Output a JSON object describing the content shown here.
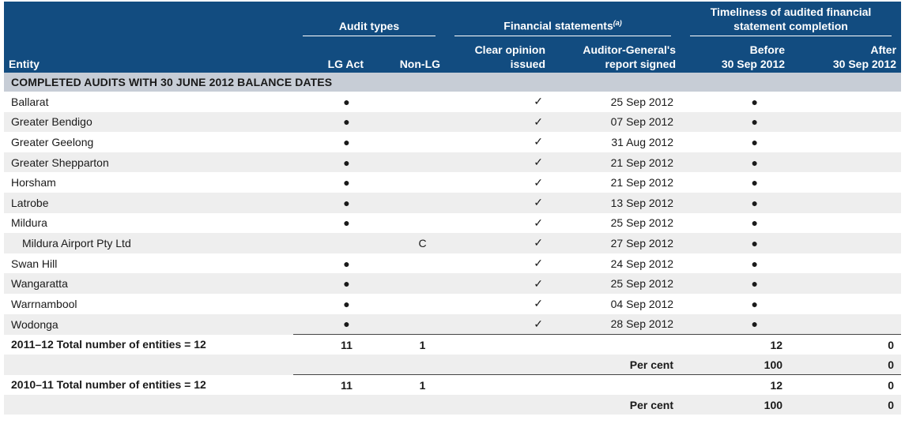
{
  "header": {
    "entity": "Entity",
    "audit_types": "Audit types",
    "lg_act": "LG Act",
    "non_lg": "Non-LG",
    "financial_statements": "Financial statements",
    "fs_note": "(a)",
    "clear_opinion_1": "Clear opinion",
    "clear_opinion_2": "issued",
    "ag_report_1": "Auditor-General's",
    "ag_report_2": "report signed",
    "timeliness_1": "Timeliness of audited financial",
    "timeliness_2": "statement completion",
    "before_1": "Before",
    "before_2": "30 Sep 2012",
    "after_1": "After",
    "after_2": "30 Sep 2012"
  },
  "section_title": "COMPLETED AUDITS WITH 30 JUNE 2012 BALANCE DATES",
  "symbols": {
    "dot": "●",
    "tick": "✓"
  },
  "rows": [
    {
      "entity": "Ballarat",
      "lg": "●",
      "nonlg": "",
      "clear": "✓",
      "ag": "25 Sep 2012",
      "before": "●",
      "after": ""
    },
    {
      "entity": "Greater Bendigo",
      "lg": "●",
      "nonlg": "",
      "clear": "✓",
      "ag": "07 Sep 2012",
      "before": "●",
      "after": ""
    },
    {
      "entity": "Greater Geelong",
      "lg": "●",
      "nonlg": "",
      "clear": "✓",
      "ag": "31 Aug 2012",
      "before": "●",
      "after": ""
    },
    {
      "entity": "Greater Shepparton",
      "lg": "●",
      "nonlg": "",
      "clear": "✓",
      "ag": "21 Sep 2012",
      "before": "●",
      "after": ""
    },
    {
      "entity": "Horsham",
      "lg": "●",
      "nonlg": "",
      "clear": "✓",
      "ag": "21 Sep 2012",
      "before": "●",
      "after": ""
    },
    {
      "entity": "Latrobe",
      "lg": "●",
      "nonlg": "",
      "clear": "✓",
      "ag": "13 Sep 2012",
      "before": "●",
      "after": ""
    },
    {
      "entity": "Mildura",
      "lg": "●",
      "nonlg": "",
      "clear": "✓",
      "ag": "25 Sep 2012",
      "before": "●",
      "after": ""
    },
    {
      "entity": "Mildura Airport Pty Ltd",
      "lg": "",
      "nonlg": "C",
      "clear": "✓",
      "ag": "27 Sep 2012",
      "before": "●",
      "after": ""
    },
    {
      "entity": "Swan Hill",
      "lg": "●",
      "nonlg": "",
      "clear": "✓",
      "ag": "24 Sep 2012",
      "before": "●",
      "after": ""
    },
    {
      "entity": "Wangaratta",
      "lg": "●",
      "nonlg": "",
      "clear": "✓",
      "ag": "25 Sep 2012",
      "before": "●",
      "after": ""
    },
    {
      "entity": "Warrnambool",
      "lg": "●",
      "nonlg": "",
      "clear": "✓",
      "ag": "04 Sep 2012",
      "before": "●",
      "after": ""
    },
    {
      "entity": "Wodonga",
      "lg": "●",
      "nonlg": "",
      "clear": "✓",
      "ag": "28 Sep 2012",
      "before": "●",
      "after": ""
    }
  ],
  "totals": [
    {
      "label": "2011–12 Total number of entities = 12",
      "lg": "11",
      "nonlg": "1",
      "before": "12",
      "after": "0",
      "pc_label": "Per cent",
      "pc_before": "100",
      "pc_after": "0"
    },
    {
      "label": "2010–11 Total number of entities = 12",
      "lg": "11",
      "nonlg": "1",
      "before": "12",
      "after": "0",
      "pc_label": "Per cent",
      "pc_before": "100",
      "pc_after": "0"
    }
  ]
}
